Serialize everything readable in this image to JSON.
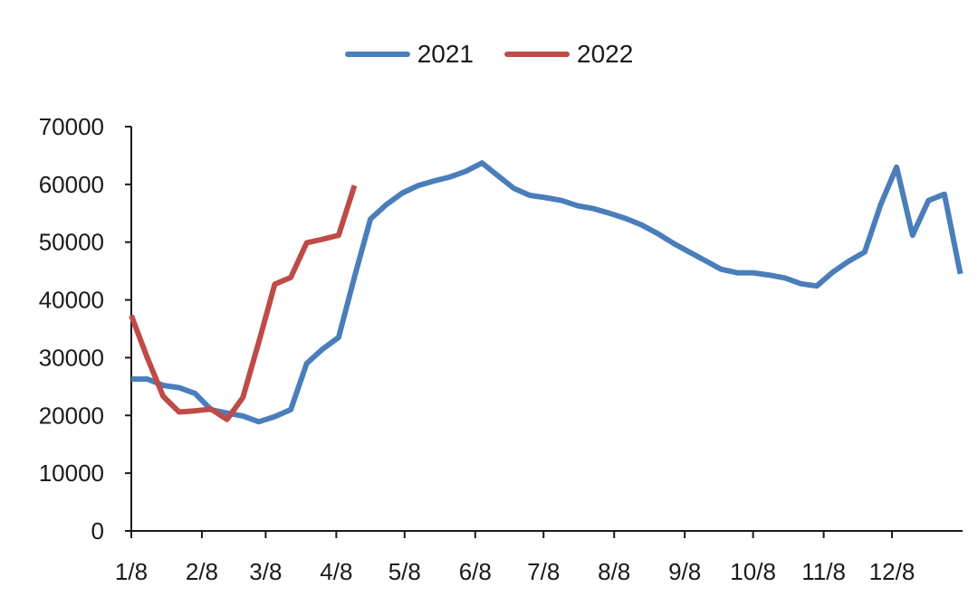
{
  "chart_data": {
    "type": "line",
    "title": "",
    "xlabel": "",
    "ylabel": "",
    "ylim": [
      0,
      70000
    ],
    "yticks": [
      0,
      10000,
      20000,
      30000,
      40000,
      50000,
      60000,
      70000
    ],
    "x_tick_labels": [
      "1/8",
      "2/8",
      "3/8",
      "4/8",
      "5/8",
      "6/8",
      "7/8",
      "8/8",
      "9/8",
      "10/8",
      "11/8",
      "12/8"
    ],
    "legend_position": "top-center",
    "grid": false,
    "series": [
      {
        "name": "2021",
        "color": "#4a7ebb",
        "points": [
          [
            "1/8",
            26300
          ],
          [
            "1/15",
            26300
          ],
          [
            "1/22",
            25200
          ],
          [
            "1/29",
            24800
          ],
          [
            "2/5",
            23800
          ],
          [
            "2/12",
            21000
          ],
          [
            "2/19",
            20400
          ],
          [
            "2/26",
            19900
          ],
          [
            "3/5",
            18900
          ],
          [
            "3/12",
            19800
          ],
          [
            "3/19",
            21000
          ],
          [
            "3/26",
            29000
          ],
          [
            "4/2",
            31500
          ],
          [
            "4/9",
            33500
          ],
          [
            "4/16",
            44000
          ],
          [
            "4/23",
            54000
          ],
          [
            "4/30",
            56500
          ],
          [
            "5/7",
            58500
          ],
          [
            "5/14",
            59800
          ],
          [
            "5/21",
            60600
          ],
          [
            "5/28",
            61300
          ],
          [
            "6/4",
            62300
          ],
          [
            "6/11",
            63700
          ],
          [
            "6/18",
            61500
          ],
          [
            "6/25",
            59300
          ],
          [
            "7/2",
            58100
          ],
          [
            "7/9",
            57700
          ],
          [
            "7/16",
            57200
          ],
          [
            "7/23",
            56300
          ],
          [
            "7/30",
            55800
          ],
          [
            "8/6",
            55000
          ],
          [
            "8/13",
            54100
          ],
          [
            "8/20",
            53000
          ],
          [
            "8/27",
            51500
          ],
          [
            "9/3",
            49800
          ],
          [
            "9/10",
            48300
          ],
          [
            "9/17",
            46800
          ],
          [
            "9/24",
            45300
          ],
          [
            "10/1",
            44700
          ],
          [
            "10/8",
            44700
          ],
          [
            "10/15",
            44300
          ],
          [
            "10/22",
            43800
          ],
          [
            "10/29",
            42800
          ],
          [
            "11/5",
            42400
          ],
          [
            "11/12",
            44800
          ],
          [
            "11/19",
            46700
          ],
          [
            "11/26",
            48300
          ],
          [
            "12/3",
            56500
          ],
          [
            "12/10",
            63000
          ],
          [
            "12/17",
            51200
          ],
          [
            "12/24",
            57200
          ],
          [
            "12/31",
            58300
          ],
          [
            "1/7",
            44500
          ]
        ]
      },
      {
        "name": "2022",
        "color": "#be4b48",
        "points": [
          [
            "1/8",
            37300
          ],
          [
            "1/15",
            30000
          ],
          [
            "1/22",
            23300
          ],
          [
            "1/29",
            20600
          ],
          [
            "2/5",
            20800
          ],
          [
            "2/12",
            21100
          ],
          [
            "2/19",
            19300
          ],
          [
            "2/26",
            23100
          ],
          [
            "3/5",
            32700
          ],
          [
            "3/12",
            42700
          ],
          [
            "3/19",
            43900
          ],
          [
            "3/26",
            49900
          ],
          [
            "4/2",
            50500
          ],
          [
            "4/9",
            51200
          ],
          [
            "4/16",
            59800
          ]
        ]
      }
    ]
  }
}
